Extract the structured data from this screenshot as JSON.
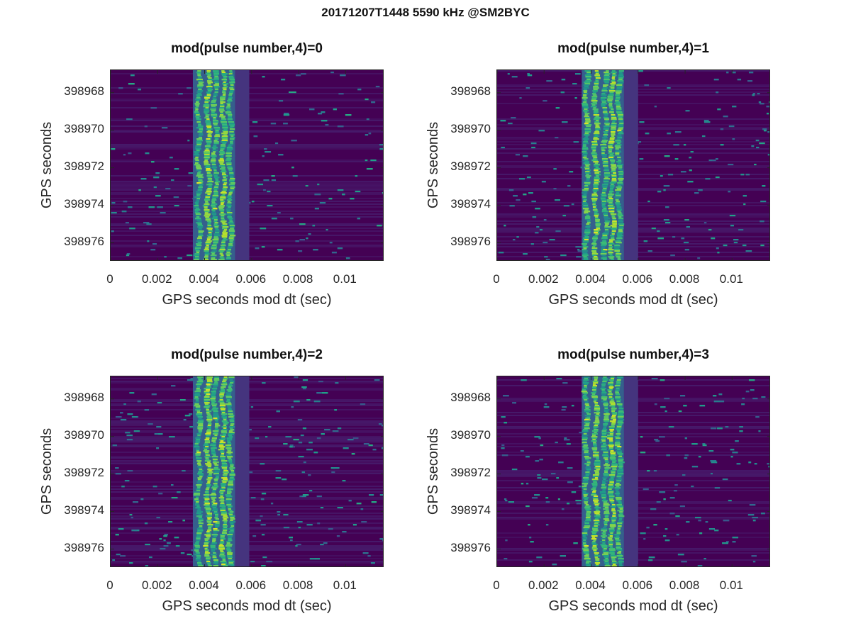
{
  "figure": {
    "suptitle": "20171207T1448 5590 kHz @SM2BYC"
  },
  "colors": {
    "background_low": "#440154",
    "mid": "#21918c",
    "high": "#5ec962",
    "peak": "#fde725"
  },
  "chart_data": [
    {
      "type": "heatmap",
      "title": "mod(pulse number,4)=0",
      "xlabel": "GPS seconds mod dt (sec)",
      "ylabel": "GPS seconds",
      "xlim": [
        0,
        0.01165
      ],
      "ylim": [
        398977.0,
        398966.8
      ],
      "x_ticks": [
        0,
        0.002,
        0.004,
        0.006,
        0.008,
        0.01
      ],
      "x_tick_labels": [
        "0",
        "0.002",
        "0.004",
        "0.006",
        "0.008",
        "0.01"
      ],
      "y_ticks": [
        398968,
        398970,
        398972,
        398974,
        398976
      ],
      "y_tick_labels": [
        "398968",
        "398970",
        "398972",
        "398974",
        "398976"
      ],
      "colormap": "viridis",
      "signal_band_x": [
        0.0035,
        0.0053
      ],
      "signal_stripes_x": [
        0.00375,
        0.00415,
        0.00445,
        0.0048,
        0.0051
      ]
    },
    {
      "type": "heatmap",
      "title": "mod(pulse number,4)=1",
      "xlabel": "GPS seconds mod dt (sec)",
      "ylabel": "GPS seconds",
      "xlim": [
        0,
        0.01165
      ],
      "ylim": [
        398977.0,
        398966.8
      ],
      "x_ticks": [
        0,
        0.002,
        0.004,
        0.006,
        0.008,
        0.01
      ],
      "x_tick_labels": [
        "0",
        "0.002",
        "0.004",
        "0.006",
        "0.008",
        "0.01"
      ],
      "y_ticks": [
        398968,
        398970,
        398972,
        398974,
        398976
      ],
      "y_tick_labels": [
        "398968",
        "398970",
        "398972",
        "398974",
        "398976"
      ],
      "colormap": "viridis",
      "signal_band_x": [
        0.0036,
        0.0054
      ],
      "signal_stripes_x": [
        0.0038,
        0.0042,
        0.0046,
        0.0049,
        0.0052
      ]
    },
    {
      "type": "heatmap",
      "title": "mod(pulse number,4)=2",
      "xlabel": "GPS seconds mod dt (sec)",
      "ylabel": "GPS seconds",
      "xlim": [
        0,
        0.01165
      ],
      "ylim": [
        398977.0,
        398966.8
      ],
      "x_ticks": [
        0,
        0.002,
        0.004,
        0.006,
        0.008,
        0.01
      ],
      "x_tick_labels": [
        "0",
        "0.002",
        "0.004",
        "0.006",
        "0.008",
        "0.01"
      ],
      "y_ticks": [
        398968,
        398970,
        398972,
        398974,
        398976
      ],
      "y_tick_labels": [
        "398968",
        "398970",
        "398972",
        "398974",
        "398976"
      ],
      "colormap": "viridis",
      "signal_band_x": [
        0.0035,
        0.0053
      ],
      "signal_stripes_x": [
        0.00375,
        0.00415,
        0.00445,
        0.0048,
        0.0051
      ]
    },
    {
      "type": "heatmap",
      "title": "mod(pulse number,4)=3",
      "xlabel": "GPS seconds mod dt (sec)",
      "ylabel": "GPS seconds",
      "xlim": [
        0,
        0.01165
      ],
      "ylim": [
        398977.0,
        398966.8
      ],
      "x_ticks": [
        0,
        0.002,
        0.004,
        0.006,
        0.008,
        0.01
      ],
      "x_tick_labels": [
        "0",
        "0.002",
        "0.004",
        "0.006",
        "0.008",
        "0.01"
      ],
      "y_ticks": [
        398968,
        398970,
        398972,
        398974,
        398976
      ],
      "y_tick_labels": [
        "398968",
        "398970",
        "398972",
        "398974",
        "398976"
      ],
      "colormap": "viridis",
      "signal_band_x": [
        0.0036,
        0.0054
      ],
      "signal_stripes_x": [
        0.0038,
        0.0042,
        0.0046,
        0.0049,
        0.0052
      ]
    }
  ]
}
